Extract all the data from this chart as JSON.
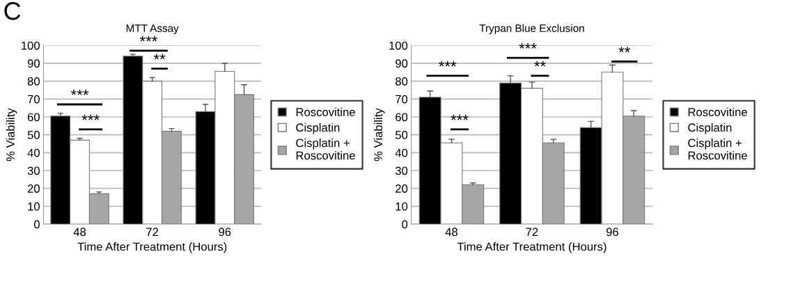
{
  "chart_data": [
    {
      "type": "bar",
      "title": "MTT Assay",
      "xlabel": "Time After Treatment (Hours)",
      "ylabel": "% Viability",
      "categories": [
        "48",
        "72",
        "96"
      ],
      "series": [
        {
          "name": "Roscovitine",
          "color": "#000000",
          "values": [
            60.5,
            94,
            63
          ],
          "errors": [
            [
              60.5,
              62
            ],
            [
              94,
              95
            ],
            [
              63,
              67
            ]
          ]
        },
        {
          "name": "Cisplatin",
          "color": "#ffffff",
          "values": [
            47,
            80,
            85.5
          ],
          "errors": [
            [
              47,
              48
            ],
            [
              80,
              82
            ],
            [
              85.5,
              90
            ]
          ]
        },
        {
          "name": "Cisplatin + Roscovitine",
          "color": "#a6a6a6",
          "values": [
            17,
            52,
            72.5
          ],
          "errors": [
            [
              17,
              18
            ],
            [
              52,
              53.5
            ],
            [
              72.5,
              78
            ]
          ]
        }
      ],
      "ylim": [
        0,
        100
      ],
      "yticks": [
        0,
        10,
        20,
        30,
        40,
        50,
        60,
        70,
        80,
        90,
        100
      ],
      "grid": "y",
      "legend": "right",
      "annotations": [
        "C",
        "***",
        "***",
        "***",
        "**"
      ]
    },
    {
      "type": "bar",
      "title": "Trypan Blue Exclusion",
      "xlabel": "Time After Treatment (Hours)",
      "ylabel": "% Viability",
      "categories": [
        "48",
        "72",
        "96"
      ],
      "series": [
        {
          "name": "Roscovitine",
          "color": "#000000",
          "values": [
            71,
            79,
            54
          ],
          "errors": [
            [
              71,
              74.5
            ],
            [
              79,
              83
            ],
            [
              54,
              57.5
            ]
          ]
        },
        {
          "name": "Cisplatin",
          "color": "#ffffff",
          "values": [
            45.5,
            76,
            85
          ],
          "errors": [
            [
              45.5,
              47.5
            ],
            [
              76,
              79.5
            ],
            [
              85,
              89
            ]
          ]
        },
        {
          "name": "Cisplatin + Roscovitine",
          "color": "#a6a6a6",
          "values": [
            22,
            45.5,
            60.5
          ],
          "errors": [
            [
              22,
              23
            ],
            [
              45.5,
              47.5
            ],
            [
              60.5,
              63.5
            ]
          ]
        }
      ],
      "ylim": [
        0,
        100
      ],
      "yticks": [
        0,
        10,
        20,
        30,
        40,
        50,
        60,
        70,
        80,
        90,
        100
      ],
      "grid": "y",
      "legend": "right",
      "annotations": [
        "***",
        "***",
        "***",
        "**",
        "**"
      ]
    }
  ]
}
